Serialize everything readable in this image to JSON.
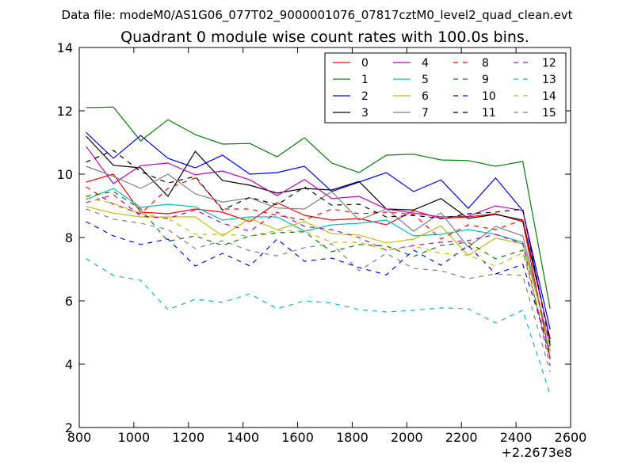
{
  "figure": {
    "suptitle": "Data file: modeM0/AS1G06_077T02_9000001076_07817cztM0_level2_quad_clean.evt"
  },
  "chart_data": {
    "type": "line",
    "title": "Quadrant 0 module wise count rates with 100.0s bins.",
    "xlabel": "",
    "ylabel": "",
    "x_offset_label": "+2.2673e8",
    "xlim": [
      800,
      2600
    ],
    "ylim": [
      2,
      14
    ],
    "xticks": [
      800,
      1000,
      1200,
      1400,
      1600,
      1800,
      2000,
      2200,
      2400,
      2600
    ],
    "yticks": [
      2,
      4,
      6,
      8,
      10,
      12,
      14
    ],
    "grid": false,
    "legend_position": "top-right",
    "legend_columns": 4,
    "x": [
      825,
      925,
      1025,
      1125,
      1225,
      1325,
      1425,
      1525,
      1625,
      1725,
      1825,
      1925,
      2025,
      2125,
      2225,
      2325,
      2425,
      2525
    ],
    "series": [
      {
        "name": "0",
        "color": "#ff0000",
        "dash": "solid",
        "values": [
          9.75,
          10.0,
          8.8,
          8.75,
          8.9,
          8.8,
          8.5,
          9.1,
          8.7,
          8.55,
          8.6,
          8.4,
          8.85,
          8.6,
          8.65,
          8.75,
          8.5,
          4.2
        ]
      },
      {
        "name": "1",
        "color": "#008000",
        "dash": "solid",
        "values": [
          12.1,
          12.12,
          11.05,
          11.72,
          11.25,
          10.95,
          10.97,
          10.55,
          11.15,
          10.35,
          10.05,
          10.6,
          10.63,
          10.45,
          10.43,
          10.25,
          10.4,
          5.75
        ]
      },
      {
        "name": "2",
        "color": "#0000ff",
        "dash": "solid",
        "values": [
          11.32,
          10.5,
          11.22,
          10.5,
          10.2,
          10.6,
          10.0,
          10.05,
          10.25,
          9.45,
          9.75,
          10.05,
          9.45,
          9.82,
          8.92,
          9.88,
          8.85,
          5.1
        ]
      },
      {
        "name": "3",
        "color": "#000000",
        "dash": "solid",
        "values": [
          11.2,
          10.28,
          10.2,
          9.3,
          10.72,
          9.8,
          9.65,
          9.4,
          9.55,
          9.5,
          9.77,
          8.9,
          8.87,
          9.23,
          8.6,
          8.73,
          8.55,
          4.8
        ]
      },
      {
        "name": "4",
        "color": "#bf00bf",
        "dash": "solid",
        "values": [
          10.88,
          9.7,
          10.27,
          10.35,
          9.98,
          10.1,
          9.82,
          9.32,
          9.83,
          9.23,
          9.3,
          8.9,
          8.77,
          8.65,
          8.67,
          9.0,
          8.85,
          4.7
        ]
      },
      {
        "name": "5",
        "color": "#00bfbf",
        "dash": "solid",
        "values": [
          9.2,
          9.55,
          8.95,
          9.05,
          8.97,
          8.55,
          8.65,
          8.65,
          8.2,
          8.4,
          8.45,
          8.55,
          8.05,
          8.1,
          8.25,
          8.1,
          7.85,
          4.6
        ]
      },
      {
        "name": "6",
        "color": "#bfbf00",
        "dash": "solid",
        "values": [
          8.98,
          8.77,
          8.65,
          8.65,
          8.65,
          8.05,
          8.6,
          8.25,
          8.5,
          8.12,
          8.08,
          7.83,
          7.95,
          8.37,
          7.43,
          7.98,
          7.8,
          4.6
        ]
      },
      {
        "name": "7",
        "color": "#808080",
        "dash": "solid",
        "values": [
          10.25,
          9.93,
          9.55,
          10.0,
          9.38,
          9.12,
          9.25,
          8.93,
          8.9,
          9.45,
          8.55,
          8.9,
          8.2,
          8.78,
          7.7,
          8.35,
          8.05,
          4.55
        ]
      },
      {
        "name": "8",
        "color": "#ff0000",
        "dash": "dashed",
        "values": [
          9.6,
          9.05,
          8.75,
          9.55,
          9.88,
          8.9,
          8.9,
          8.7,
          8.55,
          8.9,
          8.75,
          8.8,
          8.73,
          7.95,
          8.4,
          8.25,
          8.55,
          4.2
        ]
      },
      {
        "name": "9",
        "color": "#008000",
        "dash": "dashed",
        "values": [
          9.3,
          9.45,
          8.9,
          7.88,
          8.05,
          7.75,
          8.05,
          8.15,
          8.18,
          7.55,
          7.78,
          7.73,
          7.4,
          7.75,
          7.85,
          7.33,
          7.6,
          4.15
        ]
      },
      {
        "name": "10",
        "color": "#0000ff",
        "dash": "dashed",
        "values": [
          8.5,
          8.05,
          7.78,
          7.95,
          7.1,
          7.5,
          7.1,
          7.95,
          7.25,
          7.35,
          7.05,
          6.82,
          7.6,
          7.12,
          7.75,
          6.85,
          7.15,
          4.4
        ]
      },
      {
        "name": "11",
        "color": "#000000",
        "dash": "dashed",
        "values": [
          10.38,
          10.75,
          10.08,
          9.72,
          9.93,
          8.87,
          9.27,
          9.03,
          9.6,
          9.02,
          9.05,
          8.65,
          8.7,
          8.6,
          8.75,
          8.8,
          8.9,
          4.6
        ]
      },
      {
        "name": "12",
        "color": "#bf00bf",
        "dash": "dashed",
        "values": [
          9.1,
          9.35,
          8.68,
          8.6,
          8.87,
          8.45,
          8.2,
          8.8,
          8.35,
          8.25,
          8.0,
          7.6,
          7.75,
          7.85,
          7.9,
          8.1,
          7.8,
          3.95
        ]
      },
      {
        "name": "13",
        "color": "#00bfbf",
        "dash": "dashed",
        "values": [
          7.33,
          6.8,
          6.65,
          5.72,
          6.05,
          5.95,
          6.22,
          5.75,
          6.0,
          5.93,
          5.72,
          5.65,
          5.7,
          5.78,
          5.75,
          5.3,
          5.7,
          3.05
        ]
      },
      {
        "name": "14",
        "color": "#bfbf00",
        "dash": "dashed",
        "values": [
          9.25,
          9.08,
          8.75,
          8.6,
          8.1,
          8.1,
          8.05,
          8.22,
          8.2,
          7.85,
          7.85,
          7.6,
          7.73,
          7.5,
          7.45,
          7.1,
          7.52,
          4.4
        ]
      },
      {
        "name": "15",
        "color": "#808080",
        "dash": "dashed",
        "values": [
          8.9,
          8.58,
          8.45,
          8.25,
          7.65,
          7.9,
          7.58,
          7.42,
          7.68,
          7.8,
          6.95,
          7.5,
          7.02,
          6.95,
          6.7,
          6.85,
          6.8,
          3.75
        ]
      }
    ]
  }
}
